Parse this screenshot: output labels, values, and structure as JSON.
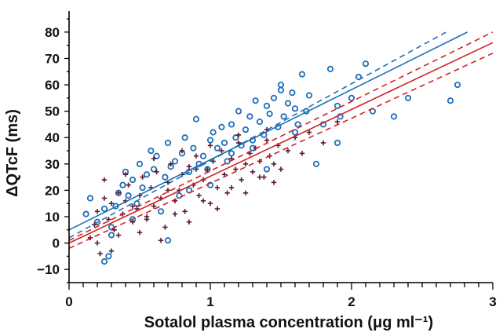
{
  "chart_data": {
    "type": "scatter",
    "title": "",
    "xlabel": "Sotalol plasma concentration (μg ml⁻¹)",
    "ylabel": "ΔQTcF (ms)",
    "xlim": [
      0,
      3
    ],
    "ylim": [
      -15,
      88
    ],
    "x_ticks": [
      0,
      1,
      2,
      3
    ],
    "x_tick_labels": [
      "0",
      "1",
      "2",
      "3"
    ],
    "y_ticks": [
      -10,
      0,
      10,
      20,
      30,
      40,
      50,
      60,
      70,
      80
    ],
    "y_tick_labels": [
      "−10",
      "0",
      "10",
      "20",
      "30",
      "40",
      "50",
      "60",
      "70",
      "80"
    ],
    "grid": false,
    "legend": "none",
    "colors": {
      "blue": "#1f6fb8",
      "red": "#d42020",
      "cross": "#5a1a2a",
      "axis": "#000000"
    },
    "series": [
      {
        "marker": "open-circle",
        "color": "#1f6fb8",
        "x": [
          0.12,
          0.15,
          0.2,
          0.25,
          0.28,
          0.3,
          0.33,
          0.35,
          0.38,
          0.4,
          0.42,
          0.45,
          0.48,
          0.5,
          0.52,
          0.55,
          0.58,
          0.6,
          0.62,
          0.65,
          0.68,
          0.7,
          0.72,
          0.75,
          0.78,
          0.8,
          0.82,
          0.85,
          0.88,
          0.9,
          0.92,
          0.95,
          0.98,
          1.0,
          1.02,
          1.05,
          1.08,
          1.1,
          1.12,
          1.15,
          1.18,
          1.2,
          1.22,
          1.25,
          1.28,
          1.3,
          1.32,
          1.35,
          1.38,
          1.4,
          1.42,
          1.45,
          1.48,
          1.5,
          1.52,
          1.55,
          1.58,
          1.6,
          1.62,
          1.65,
          1.68,
          1.7,
          1.75,
          1.8,
          1.85,
          1.9,
          1.92,
          2.0,
          2.05,
          2.1,
          2.15,
          2.3,
          2.4,
          2.7,
          2.75,
          0.25,
          0.3,
          0.45,
          0.7,
          1.0,
          1.3,
          1.5,
          1.6,
          1.9,
          0.85,
          1.15,
          1.4
        ],
        "y": [
          11,
          17,
          8,
          13,
          -5,
          3,
          14,
          19,
          22,
          27,
          18,
          24,
          15,
          30,
          21,
          26,
          35,
          28,
          33,
          12,
          25,
          38,
          29,
          31,
          18,
          34,
          40,
          27,
          36,
          47,
          30,
          33,
          28,
          39,
          42,
          36,
          44,
          38,
          31,
          45,
          40,
          50,
          37,
          43,
          48,
          39,
          54,
          46,
          41,
          52,
          49,
          55,
          44,
          60,
          48,
          53,
          57,
          51,
          45,
          64,
          50,
          56,
          30,
          45,
          66,
          52,
          48,
          55,
          63,
          68,
          50,
          48,
          55,
          54,
          60,
          -7,
          6,
          9,
          1,
          22,
          36,
          58,
          42,
          38,
          20,
          34,
          28
        ]
      },
      {
        "marker": "cross",
        "color": "#5a1a2a",
        "x": [
          0.15,
          0.18,
          0.2,
          0.22,
          0.25,
          0.28,
          0.3,
          0.32,
          0.35,
          0.38,
          0.4,
          0.42,
          0.45,
          0.48,
          0.5,
          0.52,
          0.55,
          0.58,
          0.6,
          0.62,
          0.65,
          0.68,
          0.7,
          0.72,
          0.75,
          0.78,
          0.8,
          0.82,
          0.85,
          0.88,
          0.9,
          0.92,
          0.95,
          0.98,
          1.0,
          1.02,
          1.05,
          1.08,
          1.1,
          1.12,
          1.15,
          1.18,
          1.2,
          1.22,
          1.25,
          1.28,
          1.3,
          1.32,
          1.35,
          1.38,
          1.4,
          1.42,
          1.45,
          1.48,
          1.5,
          1.55,
          1.6,
          1.65,
          1.7,
          1.8,
          1.9,
          0.2,
          0.3,
          0.35,
          0.5,
          0.55,
          0.65,
          0.75,
          0.85,
          0.95,
          1.05,
          1.15,
          1.25,
          1.35,
          1.45,
          0.25,
          0.4,
          0.6,
          0.8,
          1.0,
          1.2,
          1.4,
          0.45,
          0.7,
          0.9
        ],
        "y": [
          2,
          7,
          12,
          -4,
          24,
          9,
          15,
          5,
          19,
          11,
          16,
          22,
          8,
          13,
          18,
          25,
          10,
          21,
          14,
          27,
          17,
          6,
          23,
          30,
          16,
          20,
          26,
          12,
          29,
          22,
          33,
          18,
          24,
          28,
          15,
          31,
          21,
          35,
          26,
          19,
          32,
          28,
          38,
          24,
          30,
          34,
          27,
          36,
          31,
          25,
          39,
          33,
          30,
          37,
          28,
          35,
          40,
          34,
          42,
          38,
          46,
          0,
          -3,
          3,
          4,
          9,
          1,
          11,
          8,
          16,
          13,
          21,
          19,
          25,
          23,
          17,
          26,
          32,
          35,
          37,
          41,
          43,
          14,
          20,
          28
        ]
      },
      {
        "type": "line",
        "name": "",
        "color": "#1f6fb8",
        "dash": false,
        "x": [
          0,
          2.82
        ],
        "y": [
          5,
          80
        ]
      },
      {
        "type": "line",
        "name": "",
        "color": "#1f6fb8",
        "dash": true,
        "x": [
          0,
          2.67
        ],
        "y": [
          2,
          80
        ]
      },
      {
        "type": "line",
        "name": "",
        "color": "#d42020",
        "dash": false,
        "x": [
          0,
          3
        ],
        "y": [
          0,
          76
        ]
      },
      {
        "type": "line",
        "name": "",
        "color": "#d42020",
        "dash": true,
        "x": [
          0,
          3
        ],
        "y": [
          1,
          80
        ]
      },
      {
        "type": "line",
        "name": "",
        "color": "#d42020",
        "dash": true,
        "x": [
          0,
          3
        ],
        "y": [
          -2,
          72
        ]
      }
    ]
  }
}
